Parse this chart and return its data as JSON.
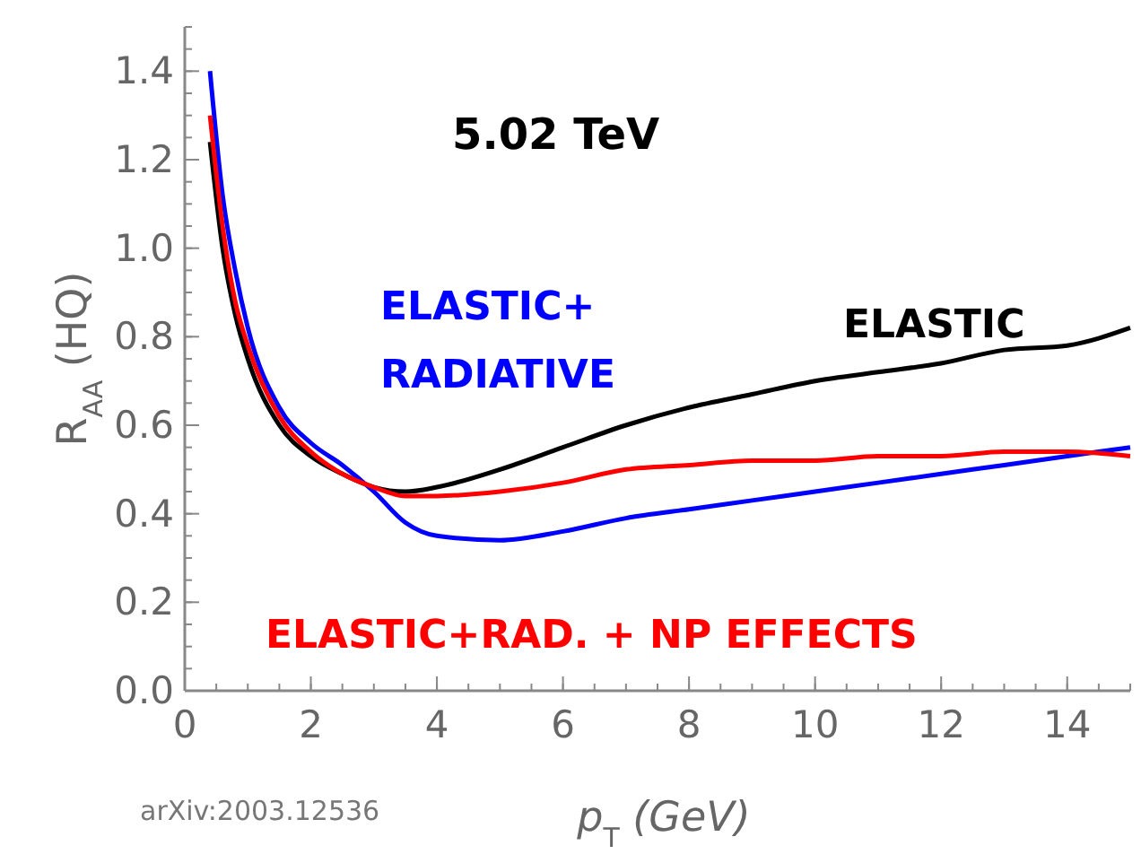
{
  "chart_data": {
    "type": "line",
    "title": "5.02 TeV",
    "xlabel": "p$_{T}$ (GeV)",
    "ylabel": "R$_{AA}$ (HQ)",
    "annotations": [
      "arXiv:2003.12536"
    ],
    "xlim": [
      0,
      15
    ],
    "ylim": [
      0,
      1.5
    ],
    "xticks": [
      0,
      2,
      4,
      6,
      8,
      10,
      12,
      14
    ],
    "yticks": [
      {
        "value": 0,
        "label": "0.0"
      },
      {
        "value": 0.2,
        "label": "0.2"
      },
      {
        "value": 0.4,
        "label": "0.4"
      },
      {
        "value": 0.6,
        "label": "0.6"
      },
      {
        "value": 0.8,
        "label": "0.8"
      },
      {
        "value": 1,
        "label": "1.0"
      },
      {
        "value": 1.2,
        "label": "1.2"
      },
      {
        "value": 1.4,
        "label": "1.4"
      }
    ],
    "grid": false,
    "line_style": "solid",
    "marker": "none",
    "x": [
      0.4,
      0.6,
      0.8,
      1,
      1.5,
      2,
      2.5,
      3,
      3.5,
      4,
      5,
      6,
      7,
      8,
      9,
      10,
      11,
      12,
      13,
      14,
      15
    ],
    "series": [
      {
        "name": "ELASTIC",
        "color": "#000000",
        "values": [
          1.24,
          1.0,
          0.85,
          0.75,
          0.6,
          0.53,
          0.49,
          0.46,
          0.45,
          0.46,
          0.5,
          0.55,
          0.6,
          0.64,
          0.67,
          0.7,
          0.72,
          0.74,
          0.77,
          0.78,
          0.82
        ]
      },
      {
        "name": "ELASTIC+ RADIATIVE",
        "color": "#0000ff",
        "values": [
          1.4,
          1.12,
          0.95,
          0.82,
          0.64,
          0.56,
          0.51,
          0.45,
          0.38,
          0.35,
          0.34,
          0.36,
          0.39,
          0.41,
          0.43,
          0.45,
          0.47,
          0.49,
          0.51,
          0.53,
          0.55
        ]
      },
      {
        "name": "ELASTIC+RAD. + NP EFFECTS",
        "color": "#ff0000",
        "values": [
          1.3,
          1.05,
          0.88,
          0.78,
          0.62,
          0.54,
          0.49,
          0.46,
          0.44,
          0.44,
          0.45,
          0.47,
          0.5,
          0.51,
          0.52,
          0.52,
          0.53,
          0.53,
          0.54,
          0.54,
          0.53
        ]
      }
    ]
  }
}
